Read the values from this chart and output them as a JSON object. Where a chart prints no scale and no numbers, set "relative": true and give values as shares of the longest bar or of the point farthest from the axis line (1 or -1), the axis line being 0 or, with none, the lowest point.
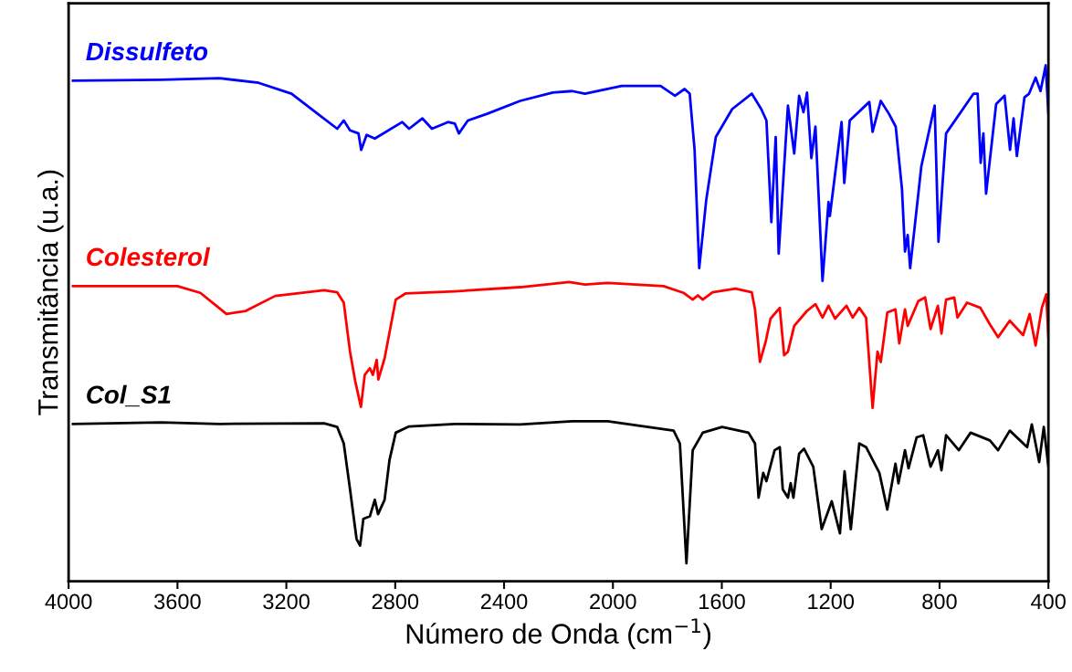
{
  "chart_data": {
    "type": "line",
    "relative": true,
    "xlabel": "Número de Onda (cm$^{−1}$)",
    "ylabel": "Transmitância (u.a.)",
    "xlim": [
      4000,
      400
    ],
    "xticks": [
      4000,
      3600,
      3200,
      2800,
      2400,
      2000,
      1600,
      1200,
      800,
      400
    ],
    "grid": false,
    "legend": false,
    "marker": "none",
    "line_style": "solid",
    "tick_labels": "x",
    "series": [
      {
        "name": "Dissulfeto",
        "color": "#0000ff",
        "x": [
          3984,
          3661,
          3446,
          3302,
          3181,
          3085,
          3013,
          2989,
          2966,
          2935,
          2925,
          2905,
          2875,
          2774,
          2749,
          2700,
          2665,
          2606,
          2581,
          2566,
          2533,
          2462,
          2341,
          2221,
          2150,
          2103,
          1968,
          1825,
          1772,
          1737,
          1718,
          1700,
          1683,
          1657,
          1622,
          1562,
          1490,
          1455,
          1436,
          1418,
          1402,
          1391,
          1357,
          1334,
          1316,
          1300,
          1287,
          1271,
          1256,
          1230,
          1208,
          1203,
          1160,
          1150,
          1130,
          1058,
          1046,
          1016,
          986,
          961,
          938,
          927,
          917,
          908,
          867,
          818,
          804,
          776,
          675,
          660,
          649,
          639,
          629,
          592,
          561,
          541,
          528,
          516,
          488,
          471,
          447,
          429,
          410,
          400
        ],
        "values": [
          0.97,
          0.972,
          0.975,
          0.966,
          0.945,
          0.906,
          0.877,
          0.893,
          0.874,
          0.868,
          0.836,
          0.865,
          0.858,
          0.89,
          0.877,
          0.897,
          0.877,
          0.89,
          0.887,
          0.868,
          0.893,
          0.906,
          0.931,
          0.947,
          0.95,
          0.945,
          0.96,
          0.96,
          0.941,
          0.954,
          0.945,
          0.836,
          0.607,
          0.74,
          0.861,
          0.915,
          0.945,
          0.915,
          0.893,
          0.696,
          0.861,
          0.635,
          0.922,
          0.829,
          0.941,
          0.909,
          0.947,
          0.82,
          0.881,
          0.582,
          0.735,
          0.708,
          0.89,
          0.772,
          0.893,
          0.929,
          0.871,
          0.931,
          0.906,
          0.881,
          0.76,
          0.639,
          0.671,
          0.607,
          0.804,
          0.922,
          0.658,
          0.868,
          0.945,
          0.945,
          0.811,
          0.868,
          0.751,
          0.925,
          0.941,
          0.836,
          0.897,
          0.824,
          0.938,
          0.945,
          0.976,
          0.95,
          1.0,
          0.906
        ]
      },
      {
        "name": "Colesterol",
        "color": "#ff0000",
        "x": [
          3984,
          3600,
          3516,
          3420,
          3349,
          3241,
          3061,
          3013,
          2989,
          2966,
          2947,
          2926,
          2912,
          2893,
          2882,
          2868,
          2862,
          2839,
          2798,
          2761,
          2581,
          2341,
          2161,
          2103,
          2019,
          1814,
          1741,
          1707,
          1688,
          1670,
          1634,
          1550,
          1490,
          1478,
          1460,
          1439,
          1421,
          1387,
          1371,
          1357,
          1334,
          1287,
          1256,
          1230,
          1208,
          1184,
          1142,
          1119,
          1095,
          1070,
          1046,
          1028,
          1016,
          992,
          962,
          948,
          927,
          917,
          878,
          853,
          833,
          806,
          793,
          776,
          746,
          734,
          699,
          650,
          615,
          585,
          542,
          493,
          469,
          447,
          424,
          408,
          400
        ],
        "values": [
          0.572,
          0.572,
          0.559,
          0.518,
          0.524,
          0.553,
          0.564,
          0.56,
          0.54,
          0.445,
          0.388,
          0.338,
          0.4,
          0.413,
          0.4,
          0.429,
          0.391,
          0.432,
          0.546,
          0.558,
          0.562,
          0.57,
          0.58,
          0.575,
          0.578,
          0.572,
          0.559,
          0.546,
          0.554,
          0.546,
          0.56,
          0.567,
          0.56,
          0.527,
          0.425,
          0.464,
          0.509,
          0.53,
          0.438,
          0.445,
          0.495,
          0.524,
          0.537,
          0.511,
          0.534,
          0.509,
          0.534,
          0.511,
          0.53,
          0.511,
          0.336,
          0.445,
          0.425,
          0.521,
          0.527,
          0.461,
          0.527,
          0.495,
          0.543,
          0.55,
          0.489,
          0.534,
          0.48,
          0.546,
          0.55,
          0.511,
          0.54,
          0.53,
          0.498,
          0.473,
          0.505,
          0.477,
          0.518,
          0.457,
          0.53,
          0.556,
          0.473
        ]
      },
      {
        "name": "Col_S1",
        "color": "#000000",
        "x": [
          3984,
          3661,
          3446,
          3061,
          3013,
          2989,
          2966,
          2942,
          2929,
          2917,
          2893,
          2875,
          2863,
          2839,
          2821,
          2798,
          2749,
          2581,
          2341,
          2150,
          2019,
          1777,
          1754,
          1730,
          1707,
          1670,
          1599,
          1502,
          1478,
          1465,
          1448,
          1436,
          1406,
          1387,
          1376,
          1357,
          1347,
          1337,
          1316,
          1298,
          1264,
          1233,
          1196,
          1166,
          1149,
          1126,
          1095,
          1070,
          1021,
          992,
          962,
          951,
          927,
          914,
          884,
          860,
          833,
          806,
          793,
          776,
          729,
          686,
          615,
          585,
          542,
          478,
          461,
          434,
          417,
          400
        ],
        "values": [
          0.305,
          0.308,
          0.305,
          0.306,
          0.299,
          0.267,
          0.178,
          0.082,
          0.069,
          0.121,
          0.126,
          0.158,
          0.13,
          0.158,
          0.235,
          0.288,
          0.3,
          0.305,
          0.304,
          0.31,
          0.31,
          0.292,
          0.267,
          0.035,
          0.254,
          0.288,
          0.299,
          0.288,
          0.267,
          0.162,
          0.21,
          0.194,
          0.254,
          0.26,
          0.178,
          0.162,
          0.19,
          0.162,
          0.247,
          0.257,
          0.222,
          0.101,
          0.155,
          0.093,
          0.213,
          0.101,
          0.267,
          0.26,
          0.21,
          0.139,
          0.228,
          0.19,
          0.254,
          0.219,
          0.279,
          0.283,
          0.222,
          0.254,
          0.215,
          0.283,
          0.254,
          0.288,
          0.273,
          0.254,
          0.292,
          0.26,
          0.304,
          0.231,
          0.299,
          0.222
        ]
      }
    ]
  }
}
